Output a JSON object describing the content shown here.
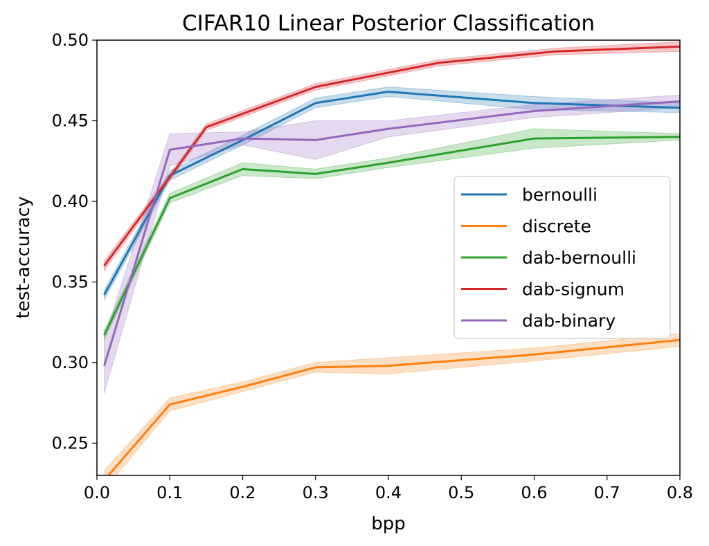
{
  "chart_data": {
    "type": "line",
    "title": "CIFAR10 Linear Posterior Classification",
    "xlabel": "bpp",
    "ylabel": "test-accuracy",
    "xlim": [
      0.0,
      0.8
    ],
    "ylim": [
      0.23,
      0.5
    ],
    "xticks": [
      0.0,
      0.1,
      0.2,
      0.3,
      0.4,
      0.5,
      0.6,
      0.7,
      0.8
    ],
    "xtick_labels": [
      "0.0",
      "0.1",
      "0.2",
      "0.3",
      "0.4",
      "0.5",
      "0.6",
      "0.7",
      "0.8"
    ],
    "yticks": [
      0.25,
      0.3,
      0.35,
      0.4,
      0.45,
      0.5
    ],
    "ytick_labels": [
      "0.25",
      "0.30",
      "0.35",
      "0.40",
      "0.45",
      "0.50"
    ],
    "grid": false,
    "legend_position": "center-right",
    "series": [
      {
        "name": "bernoulli",
        "color": "#1f77b4",
        "x": [
          0.01,
          0.1,
          0.2,
          0.3,
          0.4,
          0.6,
          0.8
        ],
        "y": [
          0.342,
          0.416,
          0.438,
          0.461,
          0.468,
          0.461,
          0.458
        ],
        "band": [
          0.003,
          0.003,
          0.003,
          0.003,
          0.003,
          0.004,
          0.003
        ]
      },
      {
        "name": "discrete",
        "color": "#ff7f0e",
        "x": [
          0.01,
          0.1,
          0.2,
          0.3,
          0.4,
          0.6,
          0.8
        ],
        "y": [
          0.227,
          0.274,
          0.285,
          0.297,
          0.298,
          0.305,
          0.314
        ],
        "band": [
          0.006,
          0.004,
          0.003,
          0.003,
          0.005,
          0.004,
          0.004
        ]
      },
      {
        "name": "dab-bernoulli",
        "color": "#2ca02c",
        "x": [
          0.01,
          0.1,
          0.2,
          0.3,
          0.4,
          0.6,
          0.8
        ],
        "y": [
          0.317,
          0.402,
          0.42,
          0.417,
          0.424,
          0.439,
          0.44
        ],
        "band": [
          0.003,
          0.003,
          0.004,
          0.003,
          0.003,
          0.006,
          0.002
        ]
      },
      {
        "name": "dab-signum",
        "color": "#d62728",
        "x": [
          0.01,
          0.1,
          0.15,
          0.3,
          0.47,
          0.63,
          0.8
        ],
        "y": [
          0.36,
          0.415,
          0.446,
          0.471,
          0.486,
          0.493,
          0.496
        ],
        "band": [
          0.003,
          0.002,
          0.002,
          0.002,
          0.002,
          0.002,
          0.003
        ]
      },
      {
        "name": "dab-binary",
        "color": "#9467bd",
        "x": [
          0.01,
          0.1,
          0.2,
          0.3,
          0.4,
          0.6,
          0.8
        ],
        "y": [
          0.298,
          0.432,
          0.439,
          0.438,
          0.445,
          0.456,
          0.462
        ],
        "band": [
          0.017,
          0.01,
          0.004,
          0.012,
          0.005,
          0.004,
          0.004
        ]
      }
    ]
  }
}
